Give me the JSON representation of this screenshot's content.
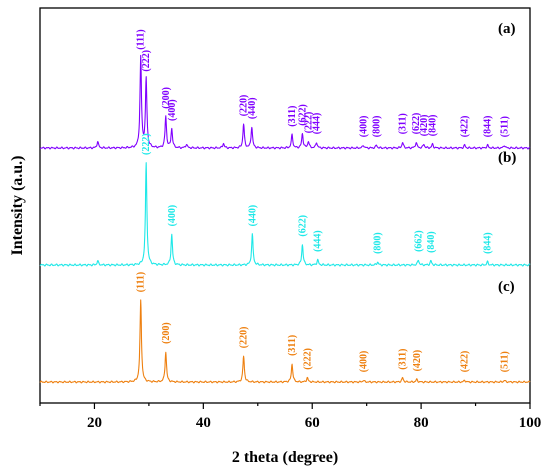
{
  "chart_data": {
    "type": "line",
    "xlabel": "2 theta (degree)",
    "ylabel": "Intensity (a.u.)",
    "xlim": [
      10,
      100
    ],
    "xticks": [
      "20",
      "40",
      "60",
      "80",
      "100"
    ],
    "yticks": "none",
    "grid": false,
    "series": [
      {
        "name": "(a)",
        "color": "#8000ff",
        "baseline": 0,
        "peaks": [
          {
            "x": 20.6,
            "h": 0.07
          },
          {
            "x": 28.5,
            "h": 0.95,
            "label": "111"
          },
          {
            "x": 29.5,
            "h": 0.72,
            "label": "222"
          },
          {
            "x": 33.1,
            "h": 0.33,
            "label": "200"
          },
          {
            "x": 34.2,
            "h": 0.2,
            "label": "400"
          },
          {
            "x": 36.9,
            "h": 0.04
          },
          {
            "x": 43.7,
            "h": 0.05
          },
          {
            "x": 47.4,
            "h": 0.25,
            "label": "220"
          },
          {
            "x": 48.9,
            "h": 0.22,
            "label": "440"
          },
          {
            "x": 56.3,
            "h": 0.14,
            "label": "311"
          },
          {
            "x": 58.2,
            "h": 0.15,
            "label": "622"
          },
          {
            "x": 59.3,
            "h": 0.07,
            "label": "222"
          },
          {
            "x": 60.8,
            "h": 0.06,
            "label": "444"
          },
          {
            "x": 69.4,
            "h": 0.03,
            "label": "400"
          },
          {
            "x": 71.8,
            "h": 0.03,
            "label": "800"
          },
          {
            "x": 76.6,
            "h": 0.06,
            "label": "311"
          },
          {
            "x": 79.1,
            "h": 0.06,
            "label": "622"
          },
          {
            "x": 80.5,
            "h": 0.04,
            "label": "420"
          },
          {
            "x": 82.1,
            "h": 0.04,
            "label": "840"
          },
          {
            "x": 88.0,
            "h": 0.03,
            "label": "422"
          },
          {
            "x": 92.2,
            "h": 0.03,
            "label": "844"
          },
          {
            "x": 95.3,
            "h": 0.03,
            "label": "511"
          }
        ]
      },
      {
        "name": "(b)",
        "color": "#1ee8e8",
        "baseline": 0,
        "peaks": [
          {
            "x": 20.6,
            "h": 0.04
          },
          {
            "x": 29.5,
            "h": 1.0,
            "label": "222"
          },
          {
            "x": 34.2,
            "h": 0.3,
            "label": "400"
          },
          {
            "x": 49.0,
            "h": 0.3,
            "label": "440"
          },
          {
            "x": 58.2,
            "h": 0.2,
            "label": "622"
          },
          {
            "x": 61.0,
            "h": 0.05,
            "label": "444"
          },
          {
            "x": 72.0,
            "h": 0.03,
            "label": "800"
          },
          {
            "x": 79.5,
            "h": 0.05,
            "label": "662"
          },
          {
            "x": 81.8,
            "h": 0.04,
            "label": "840"
          },
          {
            "x": 92.2,
            "h": 0.03,
            "label": "844"
          }
        ]
      },
      {
        "name": "(c)",
        "color": "#ee8010",
        "baseline": 0,
        "peaks": [
          {
            "x": 28.5,
            "h": 0.95,
            "label": "111"
          },
          {
            "x": 33.1,
            "h": 0.35,
            "label": "200"
          },
          {
            "x": 47.4,
            "h": 0.3,
            "label": "220"
          },
          {
            "x": 56.3,
            "h": 0.21,
            "label": "311"
          },
          {
            "x": 59.1,
            "h": 0.05,
            "label": "222"
          },
          {
            "x": 69.4,
            "h": 0.02,
            "label": "400"
          },
          {
            "x": 76.6,
            "h": 0.05,
            "label": "311"
          },
          {
            "x": 79.2,
            "h": 0.03,
            "label": "420"
          },
          {
            "x": 88.0,
            "h": 0.02,
            "label": "422"
          },
          {
            "x": 95.3,
            "h": 0.02,
            "label": "511"
          }
        ]
      }
    ]
  }
}
